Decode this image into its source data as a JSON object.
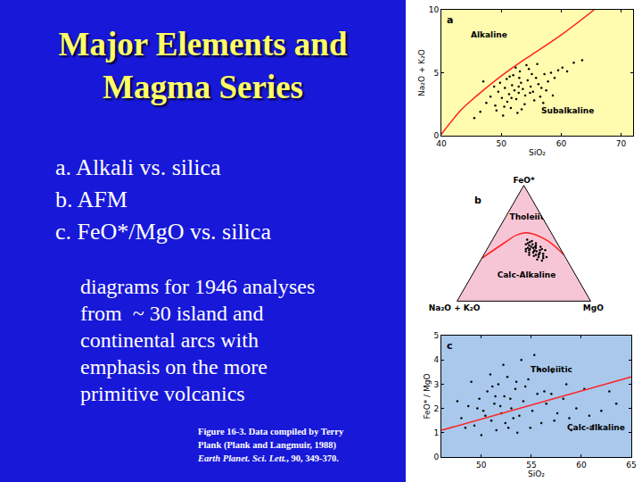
{
  "slide": {
    "title_lines": [
      "Major Elements and",
      "Magma Series"
    ],
    "items": [
      "a. Alkali vs. silica",
      "b. AFM",
      "c. FeO*/MgO vs. silica"
    ],
    "paragraph_lines": [
      "diagrams for 1946 analyses",
      "from  ~ 30 island and",
      "continental arcs with",
      "emphasis on the more",
      "primitive volcanics"
    ],
    "caption": {
      "lines": [
        "Figure 16-3. Data compiled by Terry",
        "Plank (Plank and Langmuir, 1988)"
      ],
      "journal": "Earth Planet. Sci. Lett.",
      "reference": ", 90, 349-370."
    }
  },
  "chart_data": [
    {
      "type": "scatter",
      "title": "a",
      "xlabel": "SiO₂",
      "ylabel": "Na₂O + K₂O",
      "grid": false,
      "xlim": [
        40,
        72
      ],
      "xticks": [
        40,
        50,
        60,
        70
      ],
      "ylim": [
        0,
        10
      ],
      "yticks": [
        0,
        5,
        10
      ],
      "series": [
        {
          "type": "scatter",
          "marker": "dot",
          "color": "#000000",
          "x": [
            47.5,
            48.2,
            49.0,
            49.5,
            50.1,
            50.6,
            51.0,
            51.3,
            51.8,
            52.2,
            52.5,
            52.9,
            53.3,
            53.6,
            54.0,
            54.4,
            54.9,
            55.3,
            55.8,
            56.2,
            56.7,
            57.2,
            57.8,
            58.3,
            58.9,
            59.5,
            60.2,
            61.0,
            62.1,
            46.5,
            49.8,
            50.9,
            51.6,
            52.0,
            52.7,
            53.1,
            53.9,
            54.6,
            55.5,
            56.5,
            57.5,
            48.8,
            50.3,
            51.4,
            52.4,
            53.4,
            54.2,
            55.1,
            56.0,
            57.0,
            58.6,
            45.5,
            47.0,
            63.5,
            51.7,
            52.9,
            50.5,
            54.8,
            53.0,
            49.2
          ],
          "values": [
            2.6,
            3.1,
            2.4,
            3.5,
            3.0,
            3.8,
            2.7,
            3.3,
            4.0,
            3.6,
            2.9,
            3.4,
            4.2,
            3.7,
            3.2,
            4.4,
            3.9,
            3.5,
            4.6,
            4.1,
            3.8,
            4.9,
            4.3,
            5.0,
            4.6,
            5.2,
            5.4,
            5.1,
            5.8,
            1.9,
            4.2,
            4.5,
            2.2,
            4.8,
            1.8,
            5.1,
            2.5,
            5.3,
            2.8,
            3.1,
            3.6,
            3.9,
            1.6,
            4.7,
            5.4,
            2.1,
            5.6,
            4.9,
            5.7,
            2.6,
            3.2,
            1.4,
            4.3,
            6.0,
            3.0,
            3.9,
            2.3,
            3.4,
            4.6,
            2.0
          ]
        },
        {
          "type": "line",
          "line_style": "solid",
          "color": "#ff2020",
          "x": [
            39.8,
            43.2,
            45,
            48,
            50,
            53.7,
            55,
            60,
            65.5
          ],
          "values": [
            0,
            2,
            2.8,
            4,
            4.75,
            6,
            6.4,
            8,
            10
          ]
        }
      ],
      "annotations": [
        {
          "text": "Alkaline",
          "x": 48,
          "y": 8
        },
        {
          "text": "Subalkaline",
          "x": 61,
          "y": 2
        }
      ]
    },
    {
      "type": "ternary",
      "title": "b",
      "sum": 100,
      "grid": false,
      "tick_labels": false,
      "axis_titles": {
        "a": "FeO*",
        "b": "Na₂O + K₂O",
        "c": "MgO"
      },
      "series": [
        {
          "type": "scatter",
          "marker": "dot",
          "color": "#000000",
          "a": [
            44,
            46,
            42,
            48,
            40,
            45,
            43,
            47,
            41,
            49,
            38,
            44,
            46,
            42,
            50,
            39,
            45,
            43,
            48,
            37,
            51,
            40,
            44,
            47,
            41,
            52,
            36,
            45,
            43,
            49,
            38,
            46,
            42,
            50,
            40,
            44,
            47,
            39,
            53,
            35
          ],
          "b": [
            20,
            18,
            22,
            17,
            21,
            23,
            19,
            21,
            18,
            19,
            20,
            16,
            24,
            25,
            16,
            23,
            14,
            27,
            22,
            17,
            20,
            26,
            12,
            14,
            15,
            18,
            22,
            26,
            21,
            24,
            14,
            20,
            17,
            22,
            19,
            24,
            18,
            16,
            21,
            19
          ],
          "c": [
            36,
            36,
            36,
            35,
            39,
            32,
            38,
            32,
            41,
            32,
            42,
            40,
            30,
            33,
            34,
            38,
            41,
            30,
            30,
            46,
            29,
            34,
            44,
            39,
            44,
            30,
            42,
            29,
            36,
            27,
            48,
            34,
            41,
            28,
            41,
            32,
            35,
            45,
            26,
            46
          ]
        },
        {
          "type": "line",
          "line_style": "solid",
          "color": "#ff2020",
          "a": [
            37,
            50,
            57,
            59,
            57,
            52,
            45,
            40
          ],
          "b": [
            63,
            40,
            27,
            19,
            12,
            6,
            2,
            0
          ],
          "c": [
            0,
            10,
            16,
            22,
            31,
            42,
            53,
            60
          ]
        }
      ],
      "annotations": [
        {
          "text": "Tholeiitic",
          "a": 72,
          "b": 9,
          "c": 19
        },
        {
          "text": "Calc-Alkaline",
          "a": 22,
          "b": 37,
          "c": 41
        }
      ]
    },
    {
      "type": "scatter",
      "title": "c",
      "xlabel": "SiO₂",
      "ylabel": "FeO* / MgO",
      "grid": false,
      "xlim": [
        46,
        65
      ],
      "xticks": [
        50,
        55,
        60,
        65
      ],
      "ylim": [
        0,
        5
      ],
      "yticks": [
        0,
        1,
        2,
        3,
        4,
        5
      ],
      "series": [
        {
          "type": "scatter",
          "marker": "dot",
          "color": "#000000",
          "x": [
            48.0,
            48.7,
            49.3,
            49.8,
            50.2,
            50.6,
            51.0,
            51.3,
            51.7,
            52.0,
            52.3,
            52.7,
            53.0,
            53.4,
            53.8,
            54.2,
            54.7,
            55.1,
            55.6,
            56.0,
            56.5,
            57.1,
            57.6,
            58.2,
            58.8,
            59.5,
            60.3,
            61.2,
            62.0,
            63.5,
            49.0,
            50.0,
            50.9,
            51.5,
            52.2,
            52.9,
            53.6,
            54.4,
            55.3,
            56.3,
            57.3,
            58.5,
            47.6,
            48.4,
            50.4,
            51.1,
            51.9,
            52.6,
            53.2,
            54.0,
            54.9,
            55.8,
            57.0,
            59.0,
            60.8,
            49.6,
            51.4,
            52.4,
            53.5,
            62.8
          ],
          "values": [
            1.6,
            2.1,
            1.3,
            2.4,
            1.9,
            2.7,
            1.5,
            2.2,
            3.0,
            1.8,
            2.5,
            1.2,
            2.0,
            2.8,
            1.7,
            2.3,
            3.2,
            1.9,
            2.6,
            1.4,
            2.2,
            3.5,
            1.8,
            2.4,
            1.6,
            2.0,
            2.8,
            1.3,
            1.9,
            2.2,
            3.1,
            0.9,
            3.4,
            1.1,
            3.8,
            2.4,
            1.0,
            2.9,
            4.2,
            2.7,
            1.5,
            3.0,
            2.3,
            1.2,
            1.7,
            2.9,
            2.1,
            3.3,
            1.6,
            4.0,
            1.2,
            3.6,
            2.6,
            1.1,
            1.7,
            2.0,
            2.5,
            1.4,
            3.1,
            2.7
          ]
        },
        {
          "type": "line",
          "line_style": "solid",
          "color": "#ff2020",
          "x": [
            46,
            65
          ],
          "values": [
            1.1,
            3.3
          ]
        }
      ],
      "annotations": [
        {
          "text": "Tholeiitic",
          "x": 57,
          "y": 3.6
        },
        {
          "text": "Calc-alkaline",
          "x": 61.5,
          "y": 1.2
        }
      ]
    }
  ]
}
